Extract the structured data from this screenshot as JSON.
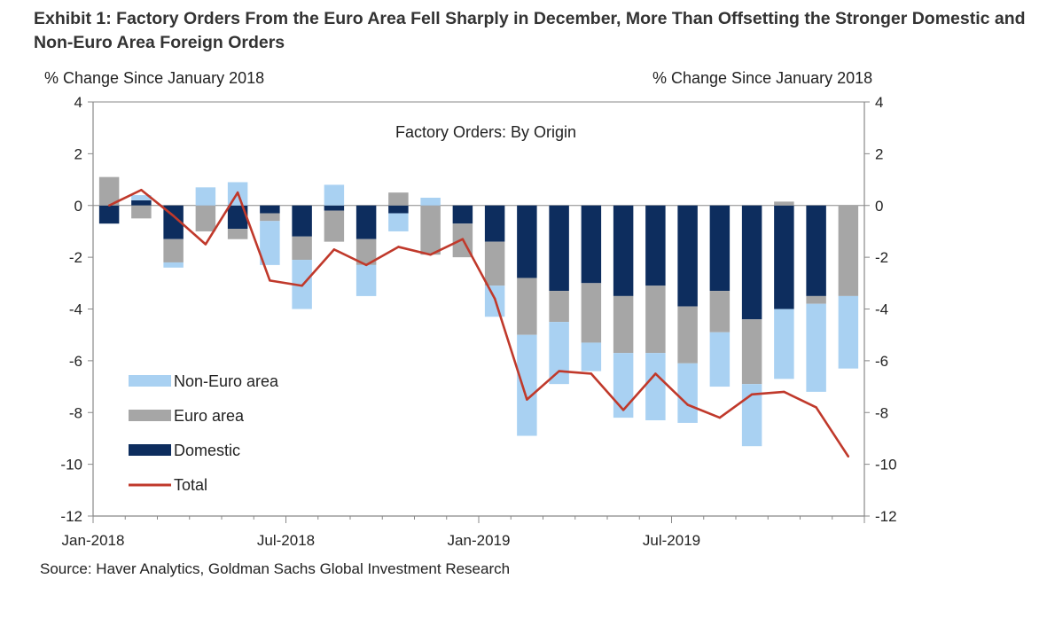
{
  "title": "Exhibit 1: Factory Orders From the Euro Area Fell Sharply in December, More Than Offsetting the Stronger Domestic and Non-Euro Area Foreign Orders",
  "source": "Source: Haver Analytics, Goldman Sachs Global Investment Research",
  "chart_data": {
    "type": "bar",
    "stacked": true,
    "title": "Factory Orders: By Origin",
    "ylabel_left": "% Change Since January 2018",
    "ylabel_right": "% Change Since January 2018",
    "ylim": [
      -12,
      4
    ],
    "yticks": [
      4,
      2,
      0,
      -2,
      -4,
      -6,
      -8,
      -10,
      -12
    ],
    "x_tick_labels": [
      "Jan-2018",
      "Jul-2018",
      "Jan-2019",
      "Jul-2019"
    ],
    "x_tick_index": [
      0,
      6,
      12,
      18
    ],
    "categories": [
      "Jan-2018",
      "Feb-2018",
      "Mar-2018",
      "Apr-2018",
      "May-2018",
      "Jun-2018",
      "Jul-2018",
      "Aug-2018",
      "Sep-2018",
      "Oct-2018",
      "Nov-2018",
      "Dec-2018",
      "Jan-2019",
      "Feb-2019",
      "Mar-2019",
      "Apr-2019",
      "May-2019",
      "Jun-2019",
      "Jul-2019",
      "Aug-2019",
      "Sep-2019",
      "Oct-2019",
      "Nov-2019",
      "Dec-2019"
    ],
    "legend_position": "bottom-left",
    "grid": false,
    "colors": {
      "non_euro": "#a9d1f2",
      "euro": "#a6a6a6",
      "domestic": "#0d2d5e",
      "total": "#c0392b"
    },
    "series": [
      {
        "name": "Non-Euro area",
        "values": [
          null,
          0.2,
          -0.2,
          0.7,
          0.9,
          -1.7,
          -1.9,
          0.8,
          -1.2,
          -0.7,
          0.3,
          null,
          -1.2,
          -3.9,
          -2.4,
          -1.1,
          -2.5,
          -2.6,
          -2.3,
          -2.1,
          -2.4,
          -2.7,
          -3.4,
          -2.8
        ]
      },
      {
        "name": "Euro area",
        "values": [
          1.1,
          -0.5,
          -0.9,
          -1.0,
          -0.4,
          -0.3,
          -0.9,
          -1.2,
          -1.0,
          0.5,
          -1.9,
          -1.3,
          -1.7,
          -2.2,
          -1.2,
          -2.3,
          -2.2,
          -2.6,
          -2.2,
          -1.6,
          -2.5,
          0.15,
          -0.3,
          -3.5
        ]
      },
      {
        "name": "Domestic",
        "values": [
          -0.7,
          0.2,
          -1.3,
          null,
          -0.9,
          -0.3,
          -1.2,
          -0.2,
          -1.3,
          -0.3,
          null,
          -0.7,
          -1.4,
          -2.8,
          -3.3,
          -3.0,
          -3.5,
          -3.1,
          -3.9,
          -3.3,
          -4.4,
          -4.0,
          -3.5,
          null
        ]
      },
      {
        "name": "Total",
        "values": [
          0.0,
          0.6,
          -0.4,
          -1.5,
          0.5,
          -2.9,
          -3.1,
          -1.7,
          -2.3,
          -1.6,
          -1.9,
          -1.3,
          -3.6,
          -7.5,
          -6.4,
          -6.5,
          -7.9,
          -6.5,
          -7.7,
          -8.2,
          -7.3,
          -7.2,
          -7.8,
          -9.7
        ]
      }
    ]
  }
}
